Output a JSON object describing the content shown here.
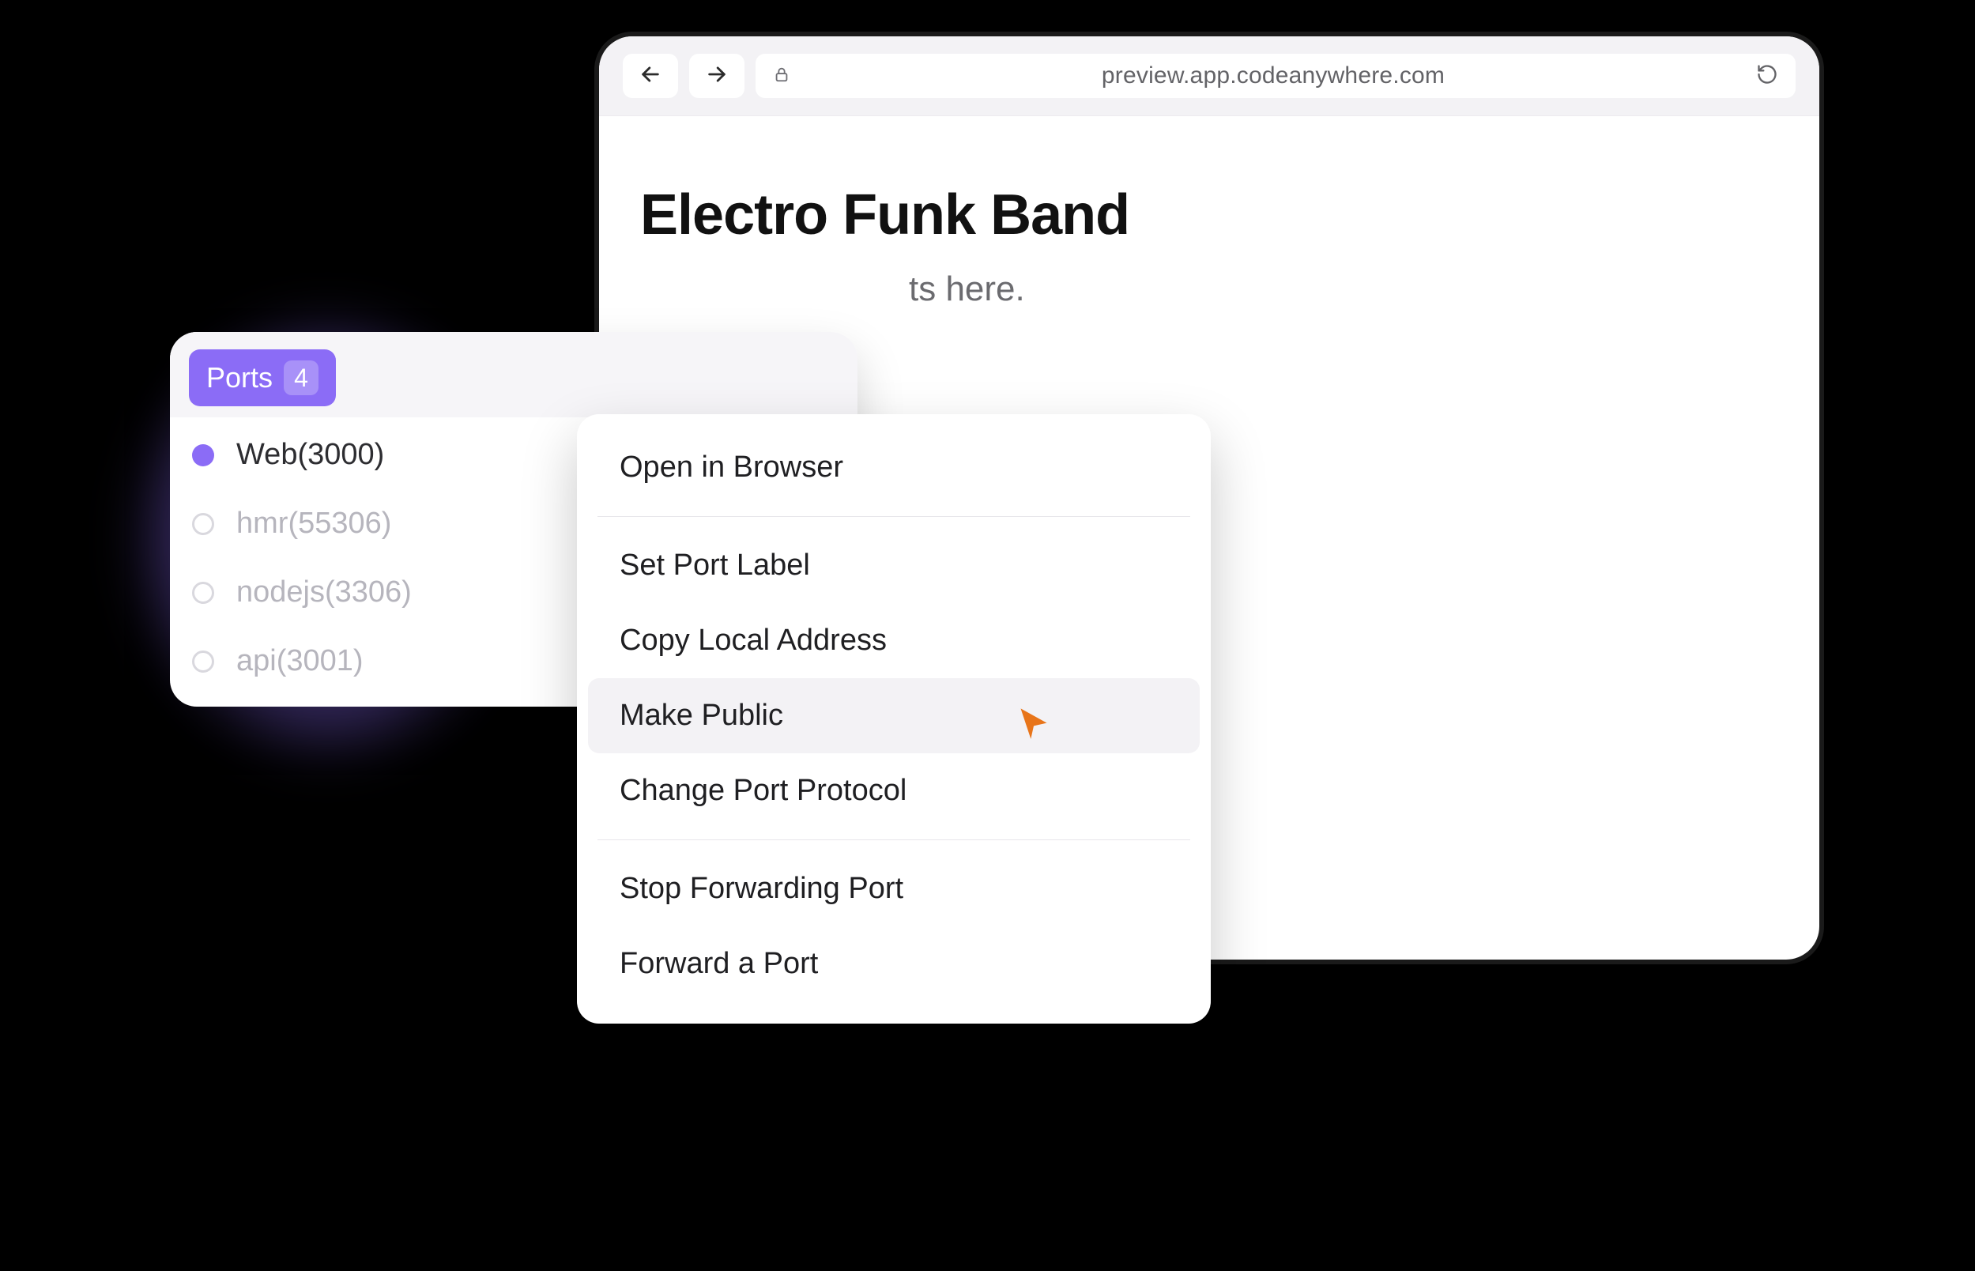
{
  "colors": {
    "background": "#000000",
    "panel_bg": "#ffffff",
    "toolbar_bg": "#f3f2f5",
    "accent": "#8b6cf6",
    "text_primary": "#111111",
    "text_secondary": "#636367",
    "text_muted": "#b6b5bd",
    "divider": "#e7e6ea",
    "highlight_bg": "#f3f2f5",
    "cursor": "#e8751a",
    "window_border": "#1a1a1a"
  },
  "browser": {
    "url": "preview.app.codeanywhere.com",
    "page_title": "Electro Funk Band",
    "page_subtitle_visible_tail": "ts here."
  },
  "ports_panel": {
    "tab_label": "Ports",
    "count": "4",
    "items": [
      {
        "label": "Web(3000)",
        "active": true
      },
      {
        "label": "hmr(55306)",
        "active": false
      },
      {
        "label": "nodejs(3306)",
        "active": false
      },
      {
        "label": "api(3001)",
        "active": false
      }
    ]
  },
  "context_menu": {
    "groups": [
      [
        {
          "label": "Open in Browser",
          "highlight": false
        }
      ],
      [
        {
          "label": "Set Port Label",
          "highlight": false
        },
        {
          "label": "Copy Local Address",
          "highlight": false
        },
        {
          "label": "Make Public",
          "highlight": true
        },
        {
          "label": "Change Port Protocol",
          "highlight": false
        }
      ],
      [
        {
          "label": "Stop Forwarding Port",
          "highlight": false
        },
        {
          "label": "Forward a Port",
          "highlight": false
        }
      ]
    ]
  }
}
